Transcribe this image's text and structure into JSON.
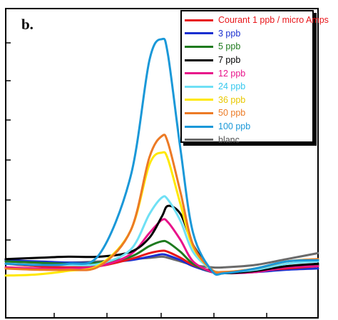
{
  "panel_label": "b.",
  "chart_data": {
    "type": "line",
    "title": "",
    "xlabel": "",
    "ylabel": "",
    "xlim": [
      0,
      100
    ],
    "ylim": [
      0,
      100
    ],
    "grid": false,
    "legend_position": "top-right",
    "x": [
      0,
      10,
      20,
      30,
      40,
      46,
      50,
      52,
      56,
      60,
      66,
      70,
      80,
      90,
      100
    ],
    "series": [
      {
        "name": "Courant 1 ppb / micro Amps",
        "color": "#e8161a",
        "text_color": "#e8161a",
        "values": [
          12.0,
          11.0,
          10.5,
          11.0,
          14.0,
          16.5,
          17.5,
          17.0,
          14.5,
          11.5,
          9.0,
          8.5,
          9.0,
          10.0,
          11.0
        ]
      },
      {
        "name": "3 ppb",
        "color": "#1a2fd0",
        "text_color": "#1a2fd0",
        "values": [
          13.5,
          13.0,
          12.5,
          12.5,
          13.5,
          15.0,
          16.0,
          15.5,
          13.5,
          11.0,
          8.5,
          8.0,
          8.5,
          9.5,
          10.0
        ]
      },
      {
        "name": "5 ppb",
        "color": "#1e7a1e",
        "text_color": "#1e7a1e",
        "values": [
          13.0,
          12.5,
          12.0,
          12.5,
          15.0,
          19.5,
          21.5,
          21.0,
          17.0,
          12.0,
          8.5,
          8.0,
          9.0,
          11.0,
          11.5
        ]
      },
      {
        "name": "7 ppb",
        "color": "#000000",
        "text_color": "#000000",
        "values": [
          14.0,
          14.5,
          15.0,
          15.0,
          17.0,
          23.0,
          32.0,
          36.5,
          33.0,
          20.0,
          9.0,
          8.0,
          9.0,
          11.0,
          12.0
        ]
      },
      {
        "name": "12 ppb",
        "color": "#e8138a",
        "text_color": "#e8138a",
        "values": [
          10.5,
          10.0,
          10.0,
          11.0,
          16.0,
          25.0,
          30.5,
          29.5,
          22.0,
          13.0,
          8.5,
          8.0,
          8.5,
          10.5,
          11.0
        ]
      },
      {
        "name": "24 ppb",
        "color": "#6fe0f5",
        "text_color": "#35c8ee",
        "values": [
          12.0,
          11.5,
          11.5,
          12.0,
          18.0,
          33.0,
          40.0,
          39.0,
          30.0,
          17.0,
          9.5,
          8.5,
          9.5,
          12.0,
          13.0
        ]
      },
      {
        "name": "36 ppb",
        "color": "#ffe800",
        "text_color": "#e8c800",
        "values": [
          7.0,
          7.5,
          9.0,
          11.5,
          26.0,
          54.0,
          59.0,
          56.0,
          37.0,
          19.0,
          9.5,
          8.5,
          10.0,
          13.0,
          14.0
        ]
      },
      {
        "name": "50 ppb",
        "color": "#ec7a25",
        "text_color": "#ec7a25",
        "values": [
          10.0,
          9.5,
          9.5,
          11.0,
          26.0,
          57.0,
          66.0,
          63.0,
          42.0,
          20.0,
          9.5,
          8.5,
          10.0,
          13.0,
          14.0
        ]
      },
      {
        "name": "100 ppb",
        "color": "#1a98d8",
        "text_color": "#1a98d8",
        "values": [
          12.0,
          11.5,
          12.0,
          16.0,
          49.0,
          98.0,
          107.0,
          100.0,
          60.0,
          25.0,
          9.0,
          8.0,
          10.0,
          13.0,
          13.5
        ]
      },
      {
        "name": "blanc",
        "color": "#6a6a6a",
        "text_color": "#505050",
        "values": [
          13.0,
          12.5,
          12.5,
          13.0,
          14.0,
          14.5,
          15.0,
          14.5,
          13.0,
          11.5,
          10.5,
          10.5,
          11.5,
          14.0,
          16.5
        ]
      }
    ]
  }
}
